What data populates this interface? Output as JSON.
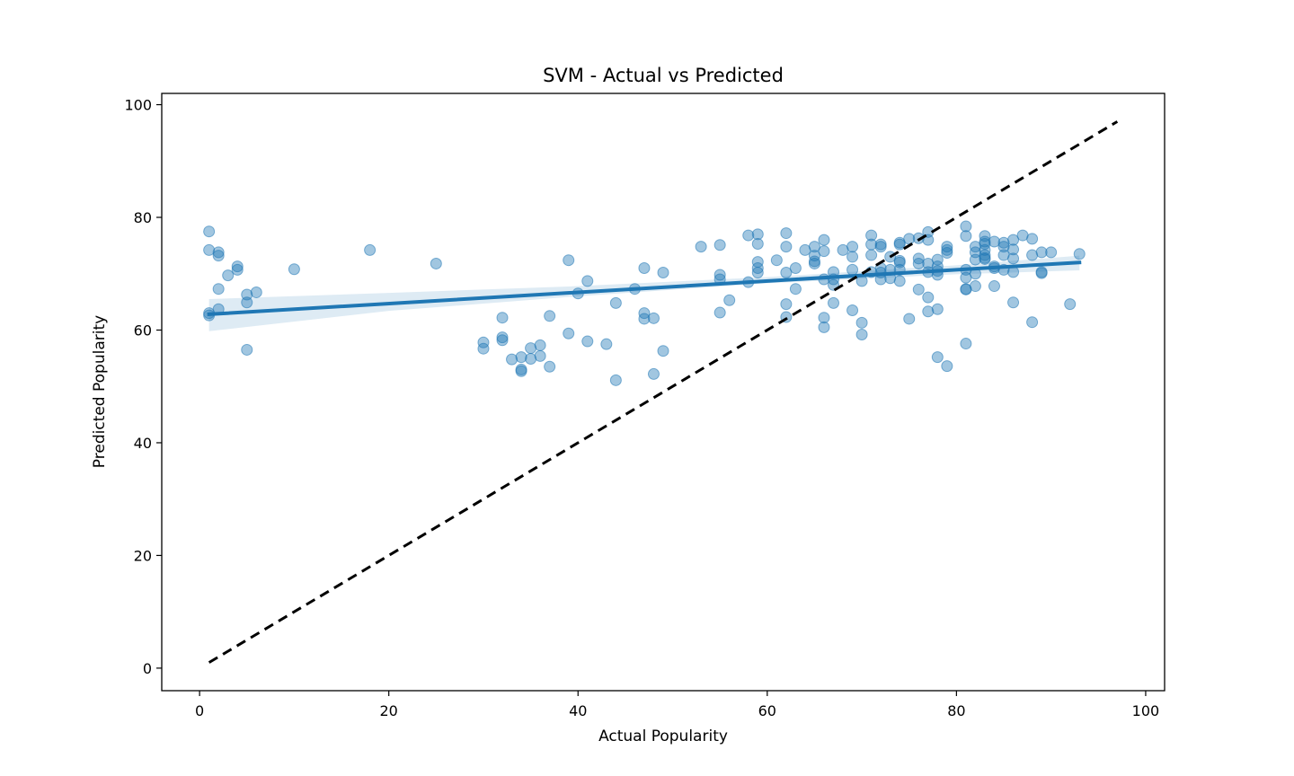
{
  "chart_data": {
    "type": "scatter",
    "title": "SVM - Actual vs Predicted",
    "xlabel": "Actual Popularity",
    "ylabel": "Predicted Popularity",
    "xlim": [
      -4,
      102
    ],
    "ylim": [
      -4,
      102
    ],
    "xticks": [
      0,
      20,
      40,
      60,
      80,
      100
    ],
    "yticks": [
      0,
      20,
      40,
      60,
      80,
      100
    ],
    "grid": false,
    "colors": {
      "points": "#1f77b4",
      "regression": "#1f77b4",
      "ci_band": "#1f77b4",
      "reference": "#000000"
    },
    "regression": {
      "x0": 1,
      "y0": 62.8,
      "x1": 93,
      "y1": 72.0
    },
    "confidence_band": [
      {
        "x": 1,
        "lo": 59.8,
        "hi": 65.5
      },
      {
        "x": 20,
        "lo": 63.4,
        "hi": 66.6
      },
      {
        "x": 40,
        "lo": 66.0,
        "hi": 67.8
      },
      {
        "x": 60,
        "lo": 68.3,
        "hi": 69.4
      },
      {
        "x": 80,
        "lo": 69.9,
        "hi": 71.5
      },
      {
        "x": 93,
        "lo": 70.6,
        "hi": 73.2
      }
    ],
    "reference_line": {
      "x0": 1,
      "y0": 1,
      "x1": 97,
      "y1": 97
    },
    "points": [
      [
        1,
        77.5
      ],
      [
        1,
        74.2
      ],
      [
        1,
        63.0
      ],
      [
        1,
        62.6
      ],
      [
        2,
        73.8
      ],
      [
        2,
        73.2
      ],
      [
        2,
        67.3
      ],
      [
        2,
        63.7
      ],
      [
        3,
        69.7
      ],
      [
        4,
        71.3
      ],
      [
        4,
        70.7
      ],
      [
        5,
        66.3
      ],
      [
        5,
        64.9
      ],
      [
        5,
        56.5
      ],
      [
        6,
        66.7
      ],
      [
        10,
        70.8
      ],
      [
        18,
        74.2
      ],
      [
        25,
        71.8
      ],
      [
        30,
        57.8
      ],
      [
        30,
        56.7
      ],
      [
        32,
        62.2
      ],
      [
        32,
        58.7
      ],
      [
        32,
        58.2
      ],
      [
        33,
        54.8
      ],
      [
        34,
        55.2
      ],
      [
        34,
        53.0
      ],
      [
        34,
        52.7
      ],
      [
        35,
        56.8
      ],
      [
        35,
        54.9
      ],
      [
        36,
        57.3
      ],
      [
        36,
        55.4
      ],
      [
        37,
        62.5
      ],
      [
        37,
        53.5
      ],
      [
        39,
        72.4
      ],
      [
        39,
        59.4
      ],
      [
        40,
        66.5
      ],
      [
        41,
        68.7
      ],
      [
        41,
        58.0
      ],
      [
        43,
        57.5
      ],
      [
        44,
        64.8
      ],
      [
        44,
        51.1
      ],
      [
        46,
        67.3
      ],
      [
        47,
        71.0
      ],
      [
        47,
        63.0
      ],
      [
        47,
        62.0
      ],
      [
        48,
        62.1
      ],
      [
        48,
        52.2
      ],
      [
        49,
        70.2
      ],
      [
        49,
        56.3
      ],
      [
        53,
        74.8
      ],
      [
        55,
        75.1
      ],
      [
        55,
        69.8
      ],
      [
        55,
        69.0
      ],
      [
        55,
        63.1
      ],
      [
        56,
        65.3
      ],
      [
        58,
        76.8
      ],
      [
        58,
        68.5
      ],
      [
        59,
        77.0
      ],
      [
        59,
        75.3
      ],
      [
        59,
        72.1
      ],
      [
        59,
        71.0
      ],
      [
        59,
        70.2
      ],
      [
        61,
        72.4
      ],
      [
        62,
        77.2
      ],
      [
        62,
        74.8
      ],
      [
        62,
        70.2
      ],
      [
        62,
        64.6
      ],
      [
        62,
        62.3
      ],
      [
        63,
        71.0
      ],
      [
        63,
        67.3
      ],
      [
        64,
        74.2
      ],
      [
        65,
        74.8
      ],
      [
        65,
        73.2
      ],
      [
        65,
        72.2
      ],
      [
        65,
        71.8
      ],
      [
        66,
        76.0
      ],
      [
        66,
        74.0
      ],
      [
        66,
        69.0
      ],
      [
        66,
        62.2
      ],
      [
        66,
        60.5
      ],
      [
        67,
        70.3
      ],
      [
        67,
        69.0
      ],
      [
        67,
        68.0
      ],
      [
        67,
        64.8
      ],
      [
        68,
        74.2
      ],
      [
        69,
        74.8
      ],
      [
        69,
        73.0
      ],
      [
        69,
        70.7
      ],
      [
        69,
        63.5
      ],
      [
        70,
        68.7
      ],
      [
        70,
        61.3
      ],
      [
        70,
        59.2
      ],
      [
        71,
        76.8
      ],
      [
        71,
        75.2
      ],
      [
        71,
        73.3
      ],
      [
        71,
        70.3
      ],
      [
        72,
        75.2
      ],
      [
        72,
        74.8
      ],
      [
        72,
        71.0
      ],
      [
        72,
        70.2
      ],
      [
        72,
        69.0
      ],
      [
        73,
        73.0
      ],
      [
        73,
        70.7
      ],
      [
        73,
        69.2
      ],
      [
        74,
        75.5
      ],
      [
        74,
        75.2
      ],
      [
        74,
        72.3
      ],
      [
        74,
        72.0
      ],
      [
        74,
        70.7
      ],
      [
        74,
        68.7
      ],
      [
        75,
        76.2
      ],
      [
        75,
        62.0
      ],
      [
        76,
        76.3
      ],
      [
        76,
        72.7
      ],
      [
        76,
        71.8
      ],
      [
        76,
        67.2
      ],
      [
        77,
        77.4
      ],
      [
        77,
        76.0
      ],
      [
        77,
        71.8
      ],
      [
        77,
        70.3
      ],
      [
        77,
        65.8
      ],
      [
        77,
        63.3
      ],
      [
        78,
        72.5
      ],
      [
        78,
        71.3
      ],
      [
        78,
        70.5
      ],
      [
        78,
        69.8
      ],
      [
        78,
        63.7
      ],
      [
        78,
        55.2
      ],
      [
        79,
        74.8
      ],
      [
        79,
        74.2
      ],
      [
        79,
        73.7
      ],
      [
        79,
        53.6
      ],
      [
        81,
        78.4
      ],
      [
        81,
        76.7
      ],
      [
        81,
        70.7
      ],
      [
        81,
        69.3
      ],
      [
        81,
        67.3
      ],
      [
        81,
        67.2
      ],
      [
        81,
        57.6
      ],
      [
        82,
        74.8
      ],
      [
        82,
        73.8
      ],
      [
        82,
        72.5
      ],
      [
        82,
        70.0
      ],
      [
        82,
        67.8
      ],
      [
        83,
        76.7
      ],
      [
        83,
        75.7
      ],
      [
        83,
        75.3
      ],
      [
        83,
        74.2
      ],
      [
        83,
        73.3
      ],
      [
        83,
        72.8
      ],
      [
        83,
        72.6
      ],
      [
        84,
        75.7
      ],
      [
        84,
        71.3
      ],
      [
        84,
        71.0
      ],
      [
        84,
        67.8
      ],
      [
        85,
        75.5
      ],
      [
        85,
        74.8
      ],
      [
        85,
        73.3
      ],
      [
        85,
        70.7
      ],
      [
        86,
        76.0
      ],
      [
        86,
        74.3
      ],
      [
        86,
        72.7
      ],
      [
        86,
        70.3
      ],
      [
        86,
        64.9
      ],
      [
        87,
        76.8
      ],
      [
        88,
        76.2
      ],
      [
        88,
        73.3
      ],
      [
        88,
        61.4
      ],
      [
        89,
        73.8
      ],
      [
        89,
        70.3
      ],
      [
        89,
        70.1
      ],
      [
        90,
        73.8
      ],
      [
        92,
        64.6
      ],
      [
        93,
        73.5
      ]
    ]
  }
}
